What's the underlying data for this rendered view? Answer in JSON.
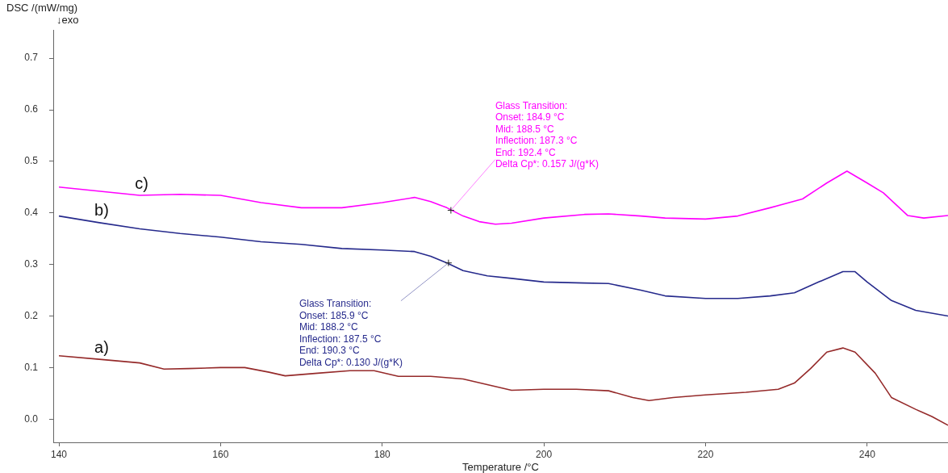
{
  "chart_data": {
    "type": "line",
    "xlabel": "Temperature /°C",
    "ylabel": "DSC /(mW/mg)\n↓exo",
    "xlim": [
      139.3,
      250
    ],
    "xticks": [
      140,
      160,
      180,
      200,
      220,
      240
    ],
    "ylim": [
      -0.045,
      0.755
    ],
    "yticks": [
      {
        "value": 0,
        "label": "0.0"
      },
      0.1,
      0.2,
      0.3,
      0.4,
      0.5,
      0.6,
      0.7
    ],
    "grid": false,
    "legend": false,
    "marker": "none",
    "line_style": "solid",
    "series": [
      {
        "name": "c)",
        "color": "#ff00ff",
        "x": [
          140,
          150,
          155,
          160,
          165,
          170,
          175,
          180,
          184,
          186,
          188,
          190,
          192,
          194,
          196,
          200,
          205,
          208,
          212,
          215,
          220,
          224,
          228,
          232,
          235,
          237.5,
          240,
          242,
          245,
          247,
          250
        ],
        "values": [
          0.45,
          0.434,
          0.436,
          0.434,
          0.42,
          0.41,
          0.41,
          0.42,
          0.43,
          0.422,
          0.41,
          0.394,
          0.383,
          0.378,
          0.38,
          0.39,
          0.397,
          0.398,
          0.394,
          0.39,
          0.388,
          0.394,
          0.41,
          0.427,
          0.458,
          0.481,
          0.458,
          0.439,
          0.395,
          0.39,
          0.395
        ]
      },
      {
        "name": "b)",
        "color": "#262a8c",
        "x": [
          140,
          145,
          150,
          155,
          160,
          165,
          170,
          175,
          180,
          184,
          186,
          188,
          190,
          193,
          196,
          200,
          205,
          208,
          212,
          215,
          220,
          224,
          228,
          231,
          234,
          237,
          238.5,
          240,
          243,
          246,
          250
        ],
        "values": [
          0.394,
          0.381,
          0.369,
          0.36,
          0.353,
          0.344,
          0.339,
          0.331,
          0.328,
          0.325,
          0.316,
          0.303,
          0.288,
          0.278,
          0.273,
          0.266,
          0.264,
          0.263,
          0.25,
          0.239,
          0.234,
          0.234,
          0.239,
          0.245,
          0.266,
          0.286,
          0.286,
          0.266,
          0.23,
          0.211,
          0.2
        ]
      },
      {
        "name": "a)",
        "color": "#952a2a",
        "x": [
          140,
          145,
          150,
          153,
          156,
          160,
          163,
          166,
          168,
          172,
          176,
          179,
          182,
          186,
          190,
          193,
          196,
          200,
          204,
          208,
          211,
          213,
          216,
          220,
          225,
          229,
          231,
          233,
          235,
          237,
          238.5,
          241,
          243,
          246,
          248,
          250
        ],
        "values": [
          0.123,
          0.116,
          0.109,
          0.097,
          0.098,
          0.1,
          0.1,
          0.091,
          0.084,
          0.089,
          0.094,
          0.094,
          0.083,
          0.083,
          0.078,
          0.067,
          0.056,
          0.058,
          0.058,
          0.055,
          0.042,
          0.036,
          0.042,
          0.047,
          0.052,
          0.058,
          0.07,
          0.098,
          0.13,
          0.138,
          0.13,
          0.089,
          0.042,
          0.019,
          0.005,
          -0.012
        ]
      }
    ],
    "annotations": [
      {
        "text": "Glass Transition:\nOnset: 184.9 °C\nMid: 188.5 °C\nInflection: 187.3 °C\nEnd: 192.4 °C\nDelta Cp*: 0.157 J/(g*K)",
        "x": 188.5,
        "y": 0.405
      },
      {
        "text": "Glass Transition:\nOnset: 185.9 °C\nMid: 188.2 °C\nInflection: 187.5 °C\nEnd: 190.3 °C\nDelta Cp*: 0.130 J/(g*K)",
        "x": 188.2,
        "y": 0.303
      }
    ]
  }
}
